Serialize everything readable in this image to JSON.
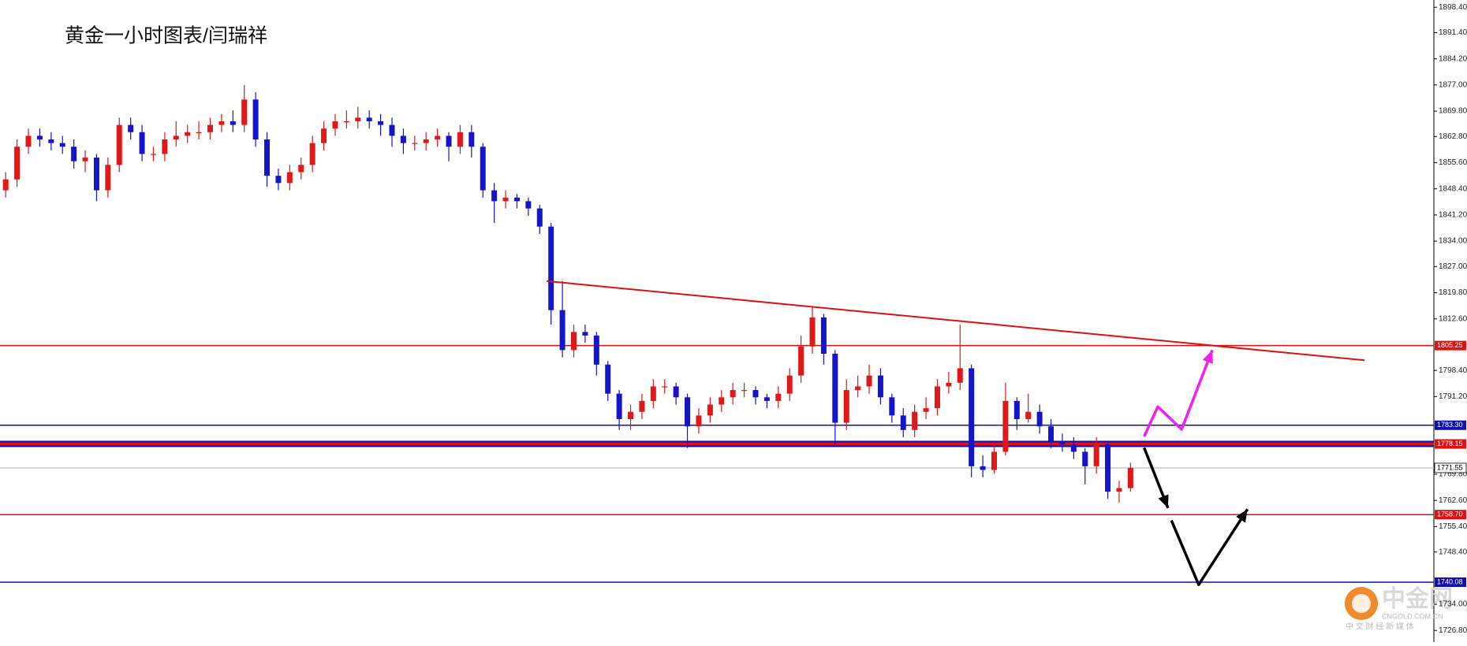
{
  "chart_data": {
    "type": "candlestick",
    "title": "黄金一小时图表/闫瑞祥",
    "up_color": "#e01818",
    "down_color": "#1414c8",
    "open": [
      1848,
      1851,
      1860,
      1863,
      1862,
      1861,
      1860,
      1856,
      1857,
      1848,
      1855,
      1866,
      1864,
      1858,
      1858,
      1862,
      1863,
      1864,
      1864,
      1866,
      1867,
      1866,
      1873,
      1862,
      1852,
      1850,
      1853,
      1855,
      1861,
      1865,
      1867,
      1867,
      1868,
      1867,
      1866,
      1863,
      1861,
      1861,
      1862,
      1863,
      1860,
      1864,
      1860,
      1848,
      1845,
      1846,
      1845,
      1843,
      1838,
      1815,
      1804,
      1809,
      1808,
      1800,
      1792,
      1785,
      1787,
      1790,
      1794,
      1794,
      1791,
      1783,
      1786,
      1789,
      1791,
      1793,
      1793,
      1791,
      1790,
      1792,
      1797,
      1805,
      1813,
      1803,
      1784,
      1793,
      1794,
      1797,
      1791,
      1786,
      1782,
      1787,
      1788,
      1794,
      1795,
      1799,
      1772,
      1771,
      1776,
      1790,
      1785,
      1787,
      1783,
      1779,
      1778,
      1776,
      1772,
      1778,
      1765,
      1766
    ],
    "high": [
      1853,
      1862,
      1865,
      1865,
      1864,
      1863,
      1862,
      1859,
      1858,
      1857,
      1868,
      1868,
      1866,
      1860,
      1864,
      1867,
      1866,
      1867,
      1868,
      1869,
      1870,
      1877,
      1875,
      1864,
      1854,
      1855,
      1857,
      1863,
      1867,
      1869,
      1870,
      1871,
      1870,
      1869,
      1868,
      1865,
      1863,
      1864,
      1865,
      1864,
      1866,
      1866,
      1861,
      1850,
      1848,
      1847,
      1846,
      1844,
      1839,
      1823,
      1811,
      1811,
      1809,
      1801,
      1793,
      1789,
      1792,
      1796,
      1796,
      1795,
      1792,
      1788,
      1791,
      1793,
      1795,
      1795,
      1794,
      1792,
      1794,
      1799,
      1808,
      1816,
      1814,
      1804,
      1796,
      1797,
      1800,
      1799,
      1792,
      1788,
      1789,
      1791,
      1796,
      1798,
      1811,
      1800,
      1775,
      1778,
      1795,
      1791,
      1792,
      1789,
      1785,
      1781,
      1780,
      1777,
      1780,
      1779,
      1768,
      1773
    ],
    "low": [
      1846,
      1849,
      1858,
      1860,
      1859,
      1858,
      1854,
      1853,
      1845,
      1846,
      1853,
      1862,
      1856,
      1856,
      1856,
      1860,
      1861,
      1862,
      1862,
      1864,
      1864,
      1864,
      1860,
      1849,
      1848,
      1848,
      1851,
      1853,
      1859,
      1863,
      1865,
      1865,
      1865,
      1863,
      1860,
      1858,
      1859,
      1859,
      1860,
      1856,
      1858,
      1857,
      1846,
      1839,
      1843,
      1843,
      1841,
      1836,
      1811,
      1802,
      1802,
      1806,
      1797,
      1790,
      1782,
      1782,
      1785,
      1788,
      1792,
      1789,
      1777,
      1781,
      1784,
      1787,
      1789,
      1791,
      1789,
      1788,
      1788,
      1790,
      1795,
      1803,
      1800,
      1778,
      1782,
      1791,
      1792,
      1789,
      1784,
      1780,
      1780,
      1785,
      1786,
      1792,
      1793,
      1769,
      1769,
      1770,
      1775,
      1782,
      1784,
      1781,
      1777,
      1776,
      1774,
      1767,
      1770,
      1763,
      1762,
      1765
    ],
    "close": [
      1851,
      1860,
      1863,
      1862,
      1861,
      1860,
      1856,
      1857,
      1848,
      1855,
      1866,
      1864,
      1858,
      1858,
      1862,
      1863,
      1864,
      1864,
      1866,
      1867,
      1866,
      1873,
      1862,
      1852,
      1850,
      1853,
      1855,
      1861,
      1865,
      1867,
      1867,
      1868,
      1867,
      1866,
      1863,
      1861,
      1861,
      1862,
      1863,
      1860,
      1864,
      1860,
      1848,
      1845,
      1846,
      1845,
      1843,
      1838,
      1815,
      1804,
      1809,
      1808,
      1800,
      1792,
      1785,
      1787,
      1790,
      1794,
      1794,
      1791,
      1783,
      1786,
      1789,
      1791,
      1793,
      1793,
      1791,
      1790,
      1792,
      1797,
      1805,
      1813,
      1803,
      1784,
      1793,
      1794,
      1797,
      1791,
      1786,
      1782,
      1787,
      1788,
      1794,
      1795,
      1799,
      1772,
      1771,
      1776,
      1790,
      1785,
      1787,
      1783,
      1779,
      1778,
      1776,
      1772,
      1778,
      1765,
      1766,
      1771.55
    ],
    "xlim": [
      -0.5,
      125.7
    ],
    "ylim": [
      1723.6,
      1900.4
    ],
    "yticks": [
      {
        "value": 1898.4,
        "label": "1898.40"
      },
      {
        "value": 1891.4,
        "label": "1891.40"
      },
      {
        "value": 1884.2,
        "label": "1884.20"
      },
      {
        "value": 1877,
        "label": "1877.00"
      },
      {
        "value": 1869.8,
        "label": "1869.80"
      },
      {
        "value": 1862.8,
        "label": "1862.80"
      },
      {
        "value": 1855.6,
        "label": "1855.60"
      },
      {
        "value": 1848.4,
        "label": "1848.40"
      },
      {
        "value": 1841.2,
        "label": "1841.20"
      },
      {
        "value": 1834,
        "label": "1834.00"
      },
      {
        "value": 1827,
        "label": "1827.00"
      },
      {
        "value": 1819.8,
        "label": "1819.80"
      },
      {
        "value": 1812.6,
        "label": "1812.60"
      },
      {
        "value": 1798.4,
        "label": "1798.40"
      },
      {
        "value": 1791.2,
        "label": "1791.20"
      },
      {
        "value": 1769.8,
        "label": "1769.80"
      },
      {
        "value": 1762.6,
        "label": "1762.60"
      },
      {
        "value": 1755.4,
        "label": "1755.40"
      },
      {
        "value": 1748.4,
        "label": "1748.40"
      },
      {
        "value": 1734,
        "label": "1734.00"
      },
      {
        "value": 1726.8,
        "label": "1726.80"
      }
    ],
    "levels": [
      {
        "value": 1805.25,
        "color": "#e01010"
      },
      {
        "value": 1783.3,
        "label": "1783.30",
        "color": "#1010b0"
      },
      {
        "value": 1778.15,
        "color": "#e01010",
        "edge_color": "#1010b0"
      },
      {
        "value": 1771.55,
        "color": "#c8c8c8"
      },
      {
        "value": 1758.7,
        "label": "1758.70",
        "color": "#e01010"
      },
      {
        "value": 1740.08,
        "color": "#1010b0"
      }
    ],
    "trendline": {
      "x": [
        47.6,
        119.6
      ],
      "y": [
        1823.0,
        1801.2
      ],
      "color": "#e01010"
    },
    "arrows": [
      {
        "color": "#f020f0",
        "x": [
          100.2,
          101.4,
          103.5,
          106.2
        ],
        "y": [
          1780.2,
          1788.4,
          1782.2,
          1804.0
        ]
      },
      {
        "color": "#000000",
        "x": [
          100.2,
          102.3
        ],
        "y": [
          1777.1,
          1760.5
        ]
      },
      {
        "color": "#000000",
        "x": [
          102.6,
          105.0,
          109.3
        ],
        "y": [
          1757.1,
          1739.4,
          1760.2
        ]
      }
    ]
  },
  "watermark": {
    "name": "中金网",
    "url": "CNGOLD.COM.CN",
    "tagline": "中 文 财 经 新 媒 体"
  }
}
